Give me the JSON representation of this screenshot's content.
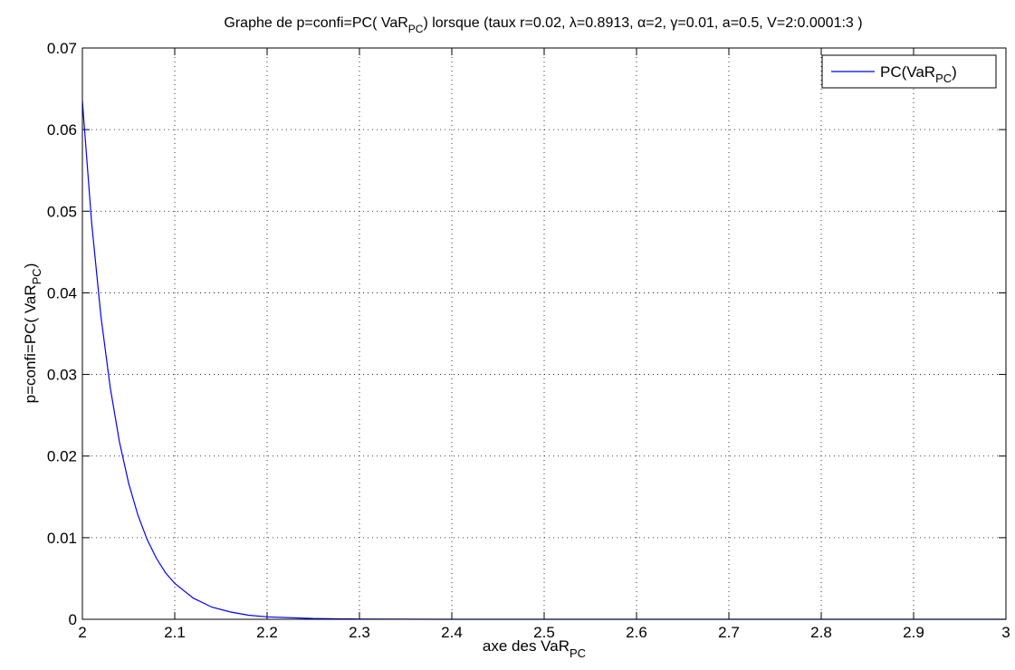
{
  "chart_data": {
    "type": "line",
    "title": "Graphe de p=confi=PC( VaRPC) lorsque (taux r=0.02, λ=0.8913, α=2, γ=0.01, a=0.5, V=2:0.0001:3 )",
    "title_parts": {
      "before": "Graphe de p=confi=PC( VaR",
      "sub": "PC",
      "after": ") lorsque (taux r=0.02, λ=0.8913, α=2, γ=0.01, a=0.5, V=2:0.0001:3 )"
    },
    "xlabel": "axe des VaRPC",
    "xlabel_parts": {
      "base": "axe des VaR",
      "sub": "PC"
    },
    "ylabel": "p=confi=PC( VaRPC)",
    "ylabel_parts": {
      "base": "p=confi=PC( VaR",
      "sub": "PC",
      "close": ")"
    },
    "xlim": [
      2,
      3
    ],
    "ylim": [
      0,
      0.07
    ],
    "x_ticks": [
      "2",
      "2.1",
      "2.2",
      "2.3",
      "2.4",
      "2.5",
      "2.6",
      "2.7",
      "2.8",
      "2.9",
      "3"
    ],
    "y_ticks": [
      "0",
      "0.01",
      "0.02",
      "0.03",
      "0.04",
      "0.05",
      "0.06",
      "0.07"
    ],
    "grid": true,
    "legend_position": "top-right",
    "line_color": "#0000ff",
    "series": [
      {
        "name": "PC(VaRPC)",
        "name_parts": {
          "base": "PC(VaR",
          "sub": "PC",
          "close": ")"
        },
        "x": [
          2.0,
          2.01,
          2.02,
          2.03,
          2.04,
          2.05,
          2.06,
          2.07,
          2.08,
          2.09,
          2.1,
          2.12,
          2.14,
          2.16,
          2.18,
          2.2,
          2.25,
          2.3,
          2.35,
          2.4,
          2.5,
          2.6,
          2.7,
          2.8,
          2.9,
          3.0
        ],
        "y": [
          0.0635,
          0.0486,
          0.0372,
          0.0285,
          0.0218,
          0.0167,
          0.0128,
          0.0098,
          0.0075,
          0.0057,
          0.0044,
          0.0026,
          0.0015,
          0.0009,
          0.0005,
          0.0003,
          0.0001,
          3e-05,
          1e-05,
          0.0,
          0.0,
          0.0,
          0.0,
          0.0,
          0.0,
          0.0
        ]
      }
    ]
  }
}
